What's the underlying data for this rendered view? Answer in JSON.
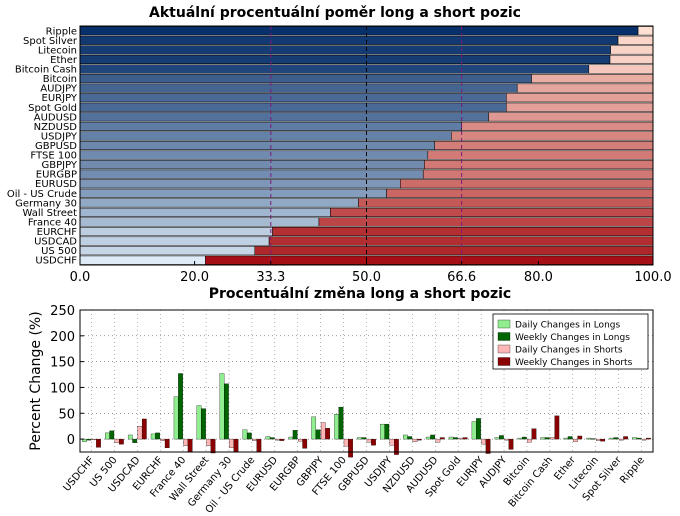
{
  "chart_data": [
    {
      "type": "bar",
      "orientation": "horizontal",
      "stacked": true,
      "title": "Aktuální procentuální poměr long a short pozic",
      "categories": [
        "Ripple",
        "Spot Silver",
        "Litecoin",
        "Ether",
        "Bitcoin Cash",
        "Bitcoin",
        "AUDJPY",
        "EURJPY",
        "Spot Gold",
        "AUDUSD",
        "NZDUSD",
        "USDJPY",
        "GBPUSD",
        "FTSE 100",
        "GBPJPY",
        "EURGBP",
        "EURUSD",
        "Oil - US Crude",
        "Germany 30",
        "Wall Street",
        "France 40",
        "EURCHF",
        "USDCAD",
        "US 500",
        "USDCHF"
      ],
      "long_percent": [
        97.4,
        93.9,
        92.6,
        92.5,
        88.8,
        78.8,
        76.3,
        74.4,
        74.4,
        71.3,
        66.6,
        64.8,
        61.9,
        60.7,
        60.1,
        59.9,
        55.9,
        53.5,
        48.6,
        43.7,
        41.7,
        33.6,
        33.0,
        30.5,
        21.9
      ],
      "xticks": [
        "0.0",
        "20.0",
        "33.3",
        "50.0",
        "66.6",
        "80.0",
        "100.0"
      ],
      "highlight_ticks": [
        "33.3",
        "66.6"
      ],
      "xlim": [
        0,
        100
      ],
      "grid": "vertical dashed lines at 33.3, 50.0, 66.6",
      "colors": {
        "long_dark": "#08306b",
        "long_light": "#deebf7",
        "short_dark": "#a50f15",
        "short_light": "#fee0d2",
        "highlight_tick": "#7b1b7b"
      }
    },
    {
      "type": "bar",
      "title": "Procentuální změna long a short pozic",
      "ylabel": "Percent Change (%)",
      "ylim": [
        -25,
        250
      ],
      "yticks": [
        "0",
        "50",
        "100",
        "150",
        "200",
        "250"
      ],
      "categories": [
        "USDCHF",
        "US 500",
        "USDCAD",
        "EURCHF",
        "France 40",
        "Wall Street",
        "Germany 30",
        "Oil - US Crude",
        "EURUSD",
        "EURGBP",
        "GBPJPY",
        "FTSE 100",
        "GBPUSD",
        "USDJPY",
        "NZDUSD",
        "AUDUSD",
        "Spot Gold",
        "EURJPY",
        "AUDJPY",
        "Bitcoin",
        "Bitcoin Cash",
        "Ether",
        "Litecoin",
        "Spot Silver",
        "Ripple"
      ],
      "legend_position": "top-right",
      "series": [
        {
          "name": "Daily Changes in Longs",
          "color": "#90ee90",
          "values": [
            -5,
            12,
            8,
            10,
            82,
            65,
            127,
            18,
            5,
            4,
            43,
            48,
            3,
            29,
            8,
            4,
            4,
            34,
            3,
            2,
            3,
            2,
            2,
            2,
            3
          ]
        },
        {
          "name": "Weekly Changes in Longs",
          "color": "#006400",
          "values": [
            -2,
            16,
            -7,
            12,
            127,
            59,
            107,
            12,
            3,
            17,
            18,
            62,
            3,
            29,
            5,
            8,
            3,
            40,
            7,
            4,
            3,
            5,
            1,
            3,
            2
          ]
        },
        {
          "name": "Daily Changes in Shorts",
          "color": "#ffb6b6",
          "values": [
            -1,
            -7,
            25,
            -3,
            -13,
            -13,
            -17,
            -3,
            -2,
            -4,
            32,
            -14,
            -6,
            -12,
            -5,
            -6,
            2,
            -10,
            -2,
            -6,
            3,
            -5,
            -3,
            -2,
            -2
          ]
        },
        {
          "name": "Weekly Changes in Shorts",
          "color": "#8b0000",
          "values": [
            -16,
            -10,
            39,
            -17,
            -25,
            -27,
            -25,
            -25,
            -3,
            -18,
            21,
            -35,
            -12,
            -30,
            -2,
            3,
            3,
            -28,
            -20,
            20,
            45,
            6,
            -4,
            5,
            2
          ]
        }
      ]
    }
  ]
}
